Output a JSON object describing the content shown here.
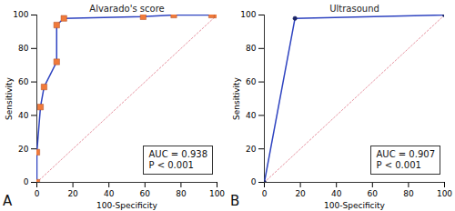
{
  "chart_data": [
    {
      "type": "line",
      "title": "Alvarado's score",
      "x_label": "100-Specificity",
      "y_label": "Sensitivity",
      "panel_label": "A",
      "annotations": [
        "AUC = 0.938",
        "P < 0.001"
      ],
      "x": [
        0,
        0,
        2,
        4,
        11,
        11,
        15,
        59,
        76,
        97,
        100
      ],
      "values": [
        0,
        18,
        45,
        57,
        72,
        94,
        98,
        99,
        100,
        100,
        100
      ],
      "color": "#2e43c0",
      "marker": "square",
      "colors": [
        "#f07a3a",
        "#f07a3a",
        "#f07a3a",
        "#f07a3a",
        "#f07a3a",
        "#f07a3a",
        "#f07a3a",
        "#f07a3a",
        "#f07a3a",
        "#f07a3a",
        "#f07a3a"
      ],
      "xlim": [
        0,
        100
      ],
      "ylim": [
        0,
        100
      ],
      "xticks": [
        0,
        20,
        40,
        60,
        80,
        100
      ],
      "yticks": [
        0,
        20,
        40,
        60,
        80,
        100
      ],
      "grid": false
    },
    {
      "type": "line",
      "title": "Ultrasound",
      "x_label": "100-Specificity",
      "y_label": "Sensitivity",
      "panel_label": "B",
      "annotations": [
        "AUC = 0.907",
        "P < 0.001"
      ],
      "x": [
        0,
        17,
        100
      ],
      "values": [
        0,
        98,
        100
      ],
      "color": "#2e43c0",
      "marker": "circle",
      "colors": [
        "#1a2466",
        "#1a2466",
        "#1a2466"
      ],
      "xlim": [
        0,
        100
      ],
      "ylim": [
        0,
        100
      ],
      "xticks": [
        0,
        20,
        40,
        60,
        80,
        100
      ],
      "yticks": [
        0,
        20,
        40,
        60,
        80,
        100
      ],
      "grid": false
    }
  ]
}
